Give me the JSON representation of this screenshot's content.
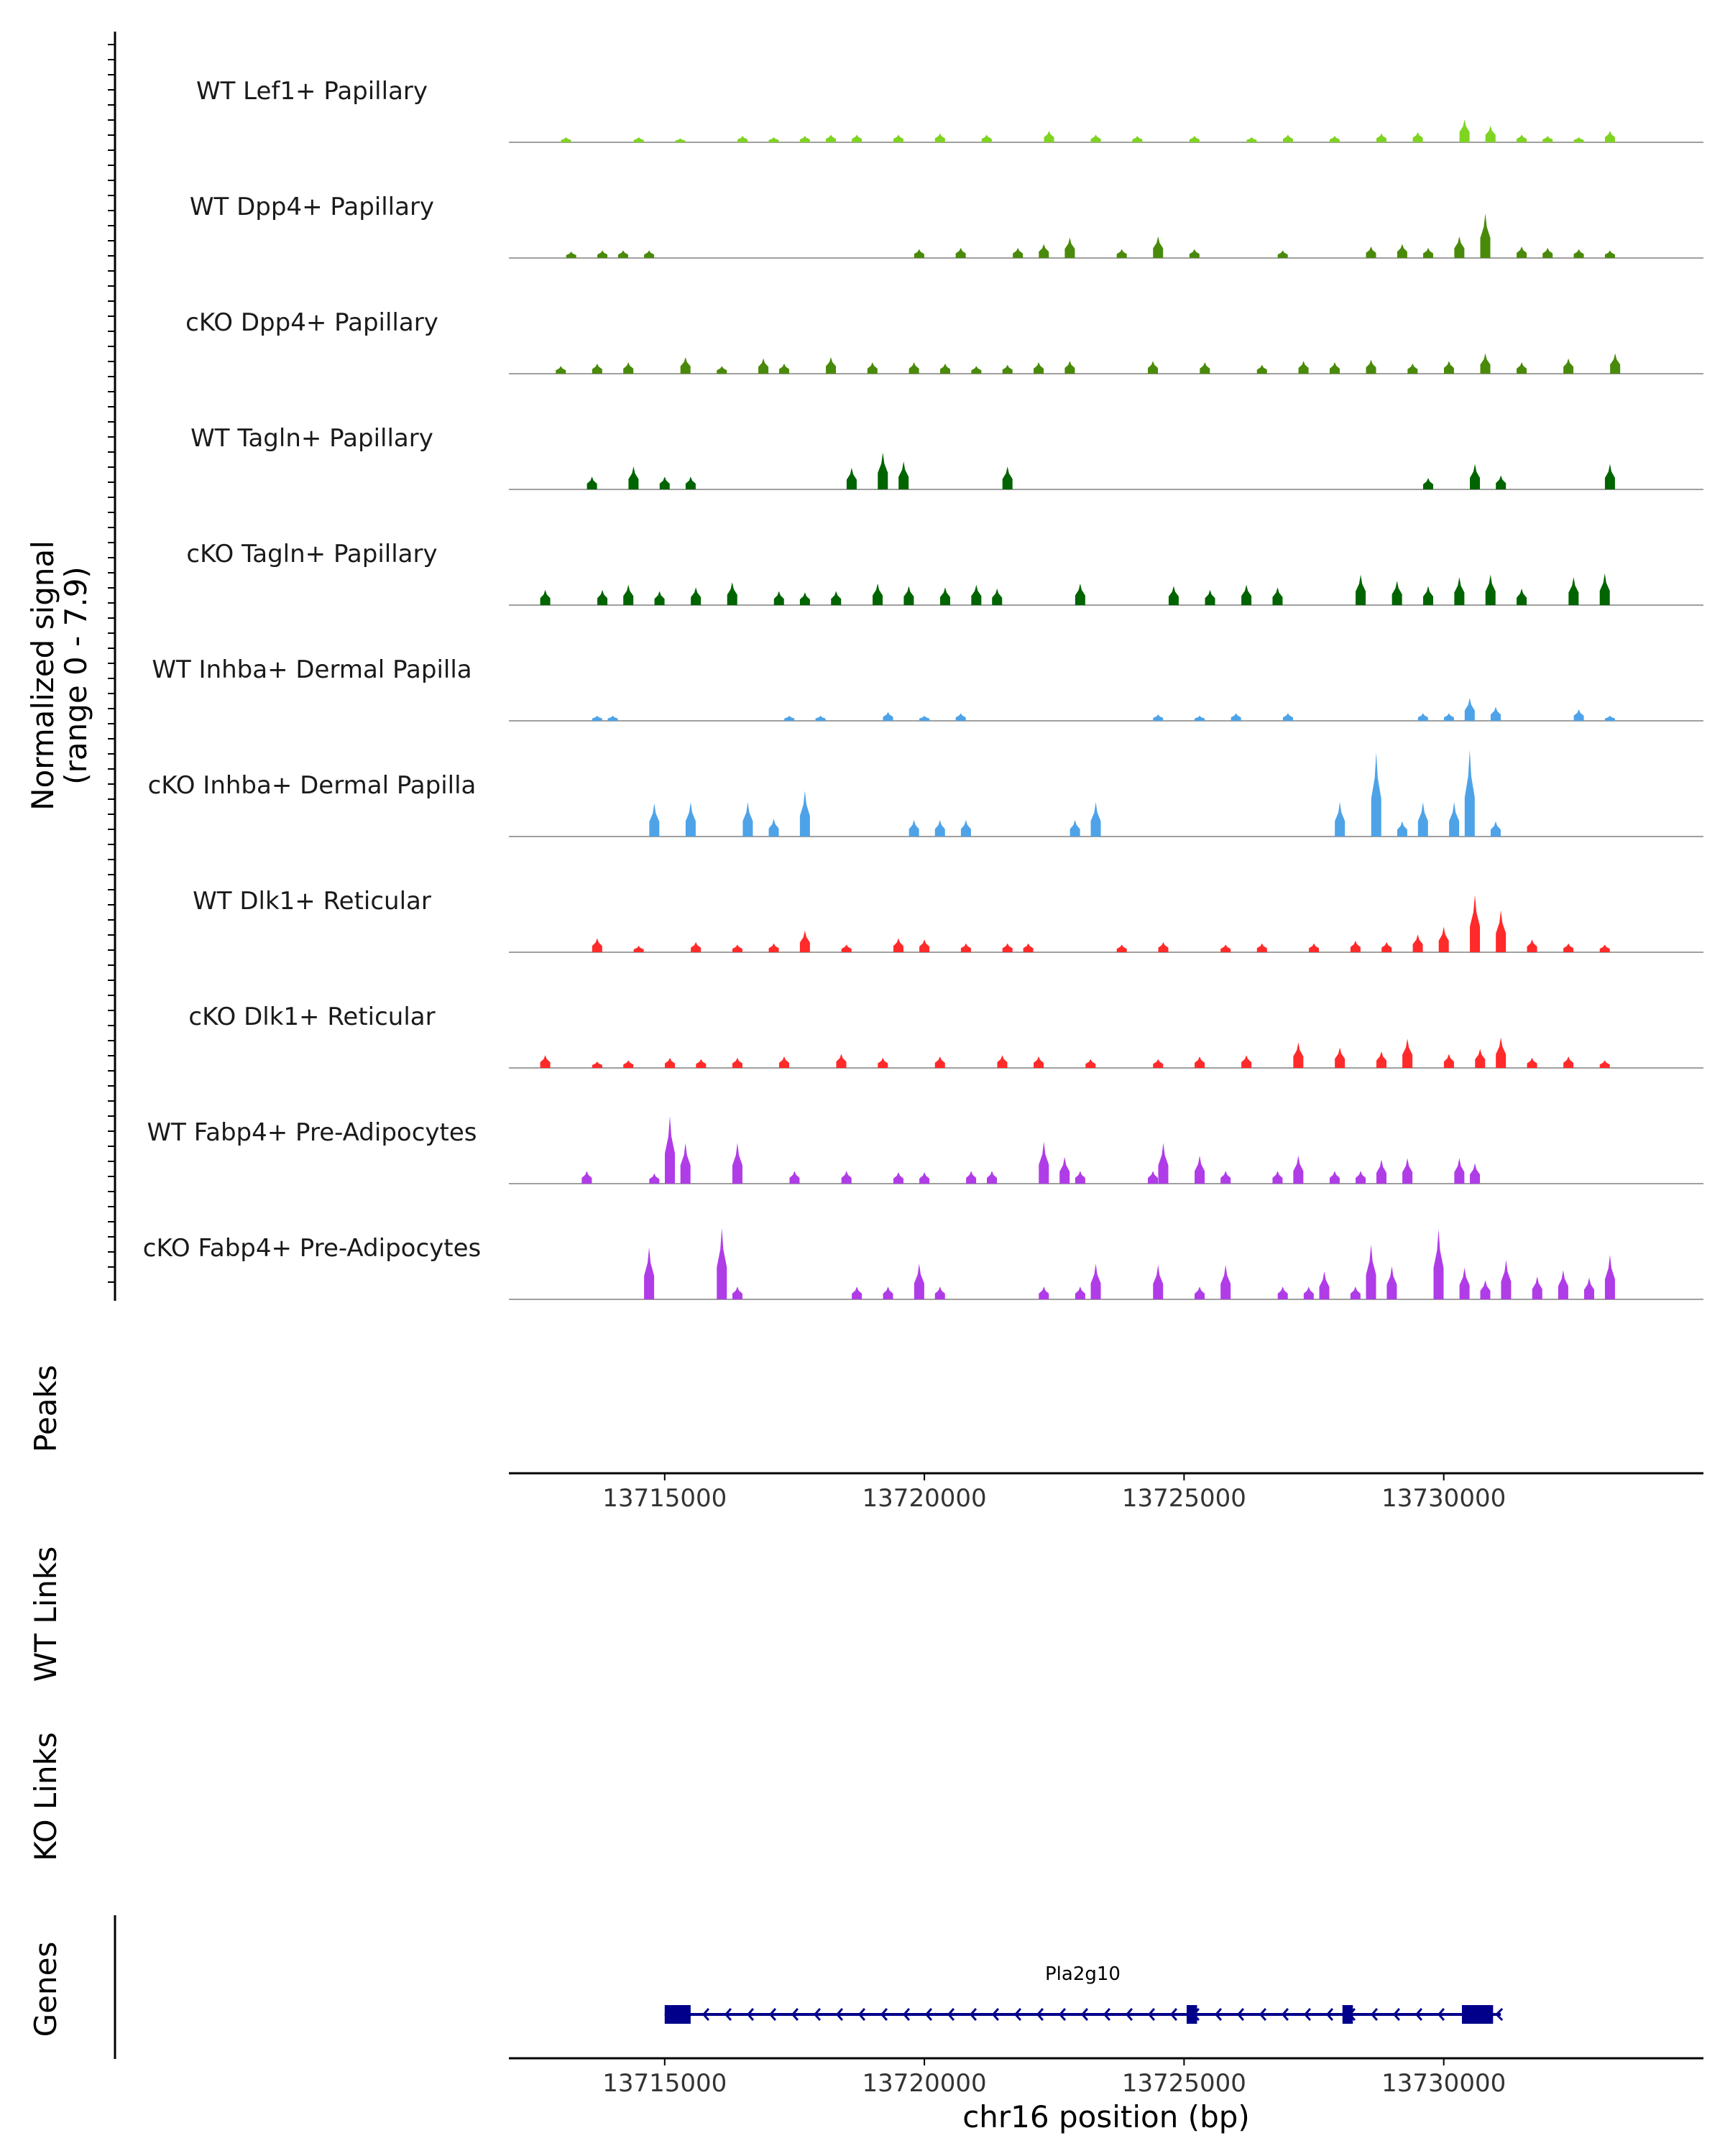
{
  "chart_data": {
    "type": "area",
    "title": "",
    "region": {
      "chromosome": "chr16",
      "start": 13712000,
      "end": 13735000
    },
    "ylabel_line1": "Normalized signal",
    "ylabel_line2": "(range 0 - 7.9)",
    "ylim": [
      0,
      7.9
    ],
    "xlabel": "chr16 position (bp)",
    "xticks": [
      13715000,
      13720000,
      13725000,
      13730000
    ],
    "xtick_labels": [
      "13715000",
      "13720000",
      "13725000",
      "13730000"
    ],
    "coverage_tracks": [
      {
        "name": "WT Lef1+ Papillary",
        "color": "#7FD321",
        "peaks": [
          [
            13713100,
            0.4
          ],
          [
            13714500,
            0.4
          ],
          [
            13715300,
            0.3
          ],
          [
            13716500,
            0.5
          ],
          [
            13717100,
            0.4
          ],
          [
            13717700,
            0.5
          ],
          [
            13718200,
            0.6
          ],
          [
            13718700,
            0.6
          ],
          [
            13719500,
            0.6
          ],
          [
            13720300,
            0.7
          ],
          [
            13721200,
            0.6
          ],
          [
            13722400,
            0.9
          ],
          [
            13723300,
            0.6
          ],
          [
            13724100,
            0.5
          ],
          [
            13725200,
            0.5
          ],
          [
            13726300,
            0.4
          ],
          [
            13727000,
            0.6
          ],
          [
            13727900,
            0.5
          ],
          [
            13728800,
            0.7
          ],
          [
            13729500,
            0.8
          ],
          [
            13730400,
            1.8
          ],
          [
            13730900,
            1.3
          ],
          [
            13731500,
            0.6
          ],
          [
            13732000,
            0.5
          ],
          [
            13732600,
            0.4
          ],
          [
            13733200,
            0.9
          ]
        ]
      },
      {
        "name": "WT Dpp4+ Papillary",
        "color": "#4A8A0A",
        "peaks": [
          [
            13713200,
            0.5
          ],
          [
            13713800,
            0.6
          ],
          [
            13714200,
            0.6
          ],
          [
            13714700,
            0.6
          ],
          [
            13719900,
            0.7
          ],
          [
            13720700,
            0.8
          ],
          [
            13721800,
            0.8
          ],
          [
            13722300,
            1.1
          ],
          [
            13722800,
            1.6
          ],
          [
            13723800,
            0.7
          ],
          [
            13724500,
            1.7
          ],
          [
            13725200,
            0.7
          ],
          [
            13726900,
            0.6
          ],
          [
            13728600,
            0.9
          ],
          [
            13729200,
            1.1
          ],
          [
            13729700,
            0.8
          ],
          [
            13730300,
            1.7
          ],
          [
            13730800,
            3.5
          ],
          [
            13731500,
            0.9
          ],
          [
            13732000,
            0.8
          ],
          [
            13732600,
            0.7
          ],
          [
            13733200,
            0.6
          ]
        ]
      },
      {
        "name": "cKO Dpp4+ Papillary",
        "color": "#4A8A0A",
        "peaks": [
          [
            13713000,
            0.6
          ],
          [
            13713700,
            0.8
          ],
          [
            13714300,
            0.9
          ],
          [
            13715400,
            1.3
          ],
          [
            13716100,
            0.6
          ],
          [
            13716900,
            1.2
          ],
          [
            13717300,
            0.8
          ],
          [
            13718200,
            1.3
          ],
          [
            13719000,
            0.9
          ],
          [
            13719800,
            0.9
          ],
          [
            13720400,
            0.8
          ],
          [
            13721000,
            0.6
          ],
          [
            13721600,
            0.7
          ],
          [
            13722200,
            0.9
          ],
          [
            13722800,
            1.0
          ],
          [
            13724400,
            1.0
          ],
          [
            13725400,
            0.9
          ],
          [
            13726500,
            0.7
          ],
          [
            13727300,
            1.0
          ],
          [
            13727900,
            0.9
          ],
          [
            13728600,
            1.1
          ],
          [
            13729400,
            0.8
          ],
          [
            13730100,
            1.0
          ],
          [
            13730800,
            1.6
          ],
          [
            13731500,
            0.9
          ],
          [
            13732400,
            1.2
          ],
          [
            13733300,
            1.6
          ]
        ]
      },
      {
        "name": "WT Tagln+ Papillary",
        "color": "#006400",
        "peaks": [
          [
            13713600,
            1.0
          ],
          [
            13714400,
            1.8
          ],
          [
            13715000,
            1.0
          ],
          [
            13715500,
            1.0
          ],
          [
            13718600,
            1.7
          ],
          [
            13719200,
            2.9
          ],
          [
            13719600,
            2.2
          ],
          [
            13721600,
            1.8
          ],
          [
            13729700,
            0.9
          ],
          [
            13730600,
            2.0
          ],
          [
            13731100,
            1.1
          ],
          [
            13733200,
            2.0
          ]
        ]
      },
      {
        "name": "cKO Tagln+ Papillary",
        "color": "#006400",
        "peaks": [
          [
            13712700,
            1.2
          ],
          [
            13713800,
            1.2
          ],
          [
            13714300,
            1.6
          ],
          [
            13714900,
            1.1
          ],
          [
            13715600,
            1.4
          ],
          [
            13716300,
            1.8
          ],
          [
            13717200,
            1.1
          ],
          [
            13717700,
            1.0
          ],
          [
            13718300,
            1.1
          ],
          [
            13719100,
            1.7
          ],
          [
            13719700,
            1.5
          ],
          [
            13720400,
            1.4
          ],
          [
            13721000,
            1.6
          ],
          [
            13721400,
            1.3
          ],
          [
            13723000,
            1.7
          ],
          [
            13724800,
            1.5
          ],
          [
            13725500,
            1.2
          ],
          [
            13726200,
            1.6
          ],
          [
            13726800,
            1.4
          ],
          [
            13728400,
            2.4
          ],
          [
            13729100,
            1.9
          ],
          [
            13729700,
            1.5
          ],
          [
            13730300,
            2.2
          ],
          [
            13730900,
            2.4
          ],
          [
            13731500,
            1.3
          ],
          [
            13732500,
            2.2
          ],
          [
            13733100,
            2.5
          ]
        ]
      },
      {
        "name": "WT Inhba+ Dermal Papilla",
        "color": "#4EA3E8",
        "peaks": [
          [
            13713700,
            0.4
          ],
          [
            13714000,
            0.4
          ],
          [
            13717400,
            0.4
          ],
          [
            13718000,
            0.4
          ],
          [
            13719300,
            0.7
          ],
          [
            13720000,
            0.4
          ],
          [
            13720700,
            0.6
          ],
          [
            13724500,
            0.5
          ],
          [
            13725300,
            0.4
          ],
          [
            13726000,
            0.6
          ],
          [
            13727000,
            0.6
          ],
          [
            13729600,
            0.6
          ],
          [
            13730100,
            0.6
          ],
          [
            13730500,
            1.8
          ],
          [
            13731000,
            1.1
          ],
          [
            13732600,
            0.9
          ],
          [
            13733200,
            0.4
          ]
        ]
      },
      {
        "name": "cKO Inhba+ Dermal Papilla",
        "color": "#4EA3E8",
        "peaks": [
          [
            13714800,
            2.6
          ],
          [
            13715500,
            2.7
          ],
          [
            13716600,
            2.7
          ],
          [
            13717100,
            1.4
          ],
          [
            13717700,
            3.6
          ],
          [
            13719800,
            1.3
          ],
          [
            13720300,
            1.3
          ],
          [
            13720800,
            1.3
          ],
          [
            13722900,
            1.3
          ],
          [
            13723300,
            2.7
          ],
          [
            13728000,
            2.7
          ],
          [
            13728700,
            6.6
          ],
          [
            13729200,
            1.2
          ],
          [
            13729600,
            2.7
          ],
          [
            13730200,
            2.7
          ],
          [
            13730500,
            6.8
          ],
          [
            13731000,
            1.2
          ]
        ]
      },
      {
        "name": "WT Dlk1+ Reticular",
        "color": "#FF2A2A",
        "peaks": [
          [
            13713700,
            1.1
          ],
          [
            13714500,
            0.5
          ],
          [
            13715600,
            0.8
          ],
          [
            13716400,
            0.6
          ],
          [
            13717100,
            0.7
          ],
          [
            13717700,
            1.7
          ],
          [
            13718500,
            0.6
          ],
          [
            13719500,
            1.1
          ],
          [
            13720000,
            1.0
          ],
          [
            13720800,
            0.7
          ],
          [
            13721600,
            0.7
          ],
          [
            13722000,
            0.7
          ],
          [
            13723800,
            0.6
          ],
          [
            13724600,
            0.8
          ],
          [
            13725800,
            0.6
          ],
          [
            13726500,
            0.7
          ],
          [
            13727500,
            0.7
          ],
          [
            13728300,
            0.9
          ],
          [
            13728900,
            0.8
          ],
          [
            13729500,
            1.4
          ],
          [
            13730000,
            2.0
          ],
          [
            13730600,
            4.5
          ],
          [
            13731100,
            3.3
          ],
          [
            13731700,
            1.0
          ],
          [
            13732400,
            0.7
          ],
          [
            13733100,
            0.6
          ]
        ]
      },
      {
        "name": "cKO Dlk1+ Reticular",
        "color": "#FF2A2A",
        "peaks": [
          [
            13712700,
            1.0
          ],
          [
            13713700,
            0.5
          ],
          [
            13714300,
            0.6
          ],
          [
            13715100,
            0.8
          ],
          [
            13715700,
            0.7
          ],
          [
            13716400,
            0.8
          ],
          [
            13717300,
            0.9
          ],
          [
            13718400,
            1.1
          ],
          [
            13719200,
            0.8
          ],
          [
            13720300,
            0.9
          ],
          [
            13721500,
            1.0
          ],
          [
            13722200,
            0.9
          ],
          [
            13723200,
            0.7
          ],
          [
            13724500,
            0.7
          ],
          [
            13725300,
            0.9
          ],
          [
            13726200,
            1.0
          ],
          [
            13727200,
            2.0
          ],
          [
            13728000,
            1.6
          ],
          [
            13728800,
            1.3
          ],
          [
            13729300,
            2.3
          ],
          [
            13730100,
            1.1
          ],
          [
            13730700,
            1.5
          ],
          [
            13731100,
            2.4
          ],
          [
            13731700,
            0.8
          ],
          [
            13732400,
            0.9
          ],
          [
            13733100,
            0.6
          ]
        ]
      },
      {
        "name": "WT Fabp4+ Pre-Adipocytes",
        "color": "#B03CE8",
        "peaks": [
          [
            13713500,
            1.0
          ],
          [
            13714800,
            0.8
          ],
          [
            13715100,
            5.3
          ],
          [
            13715400,
            3.2
          ],
          [
            13716400,
            3.2
          ],
          [
            13717500,
            1.0
          ],
          [
            13718500,
            1.0
          ],
          [
            13719500,
            0.9
          ],
          [
            13720000,
            0.9
          ],
          [
            13720900,
            1.0
          ],
          [
            13721300,
            1.0
          ],
          [
            13722300,
            3.3
          ],
          [
            13722700,
            2.1
          ],
          [
            13723000,
            1.0
          ],
          [
            13724400,
            1.0
          ],
          [
            13724600,
            3.2
          ],
          [
            13725300,
            2.2
          ],
          [
            13725800,
            1.0
          ],
          [
            13726800,
            1.0
          ],
          [
            13727200,
            2.2
          ],
          [
            13727900,
            1.0
          ],
          [
            13728400,
            1.0
          ],
          [
            13728800,
            1.9
          ],
          [
            13729300,
            2.0
          ],
          [
            13730300,
            2.0
          ],
          [
            13730600,
            1.6
          ]
        ]
      },
      {
        "name": "cKO Fabp4+ Pre-Adipocytes",
        "color": "#B03CE8",
        "peaks": [
          [
            13714700,
            4.1
          ],
          [
            13716100,
            5.6
          ],
          [
            13716400,
            1.0
          ],
          [
            13718700,
            1.0
          ],
          [
            13719300,
            1.0
          ],
          [
            13719900,
            2.8
          ],
          [
            13720300,
            1.0
          ],
          [
            13722300,
            1.0
          ],
          [
            13723000,
            1.0
          ],
          [
            13723300,
            2.8
          ],
          [
            13724500,
            2.7
          ],
          [
            13725300,
            1.0
          ],
          [
            13725800,
            2.7
          ],
          [
            13726900,
            1.0
          ],
          [
            13727400,
            1.0
          ],
          [
            13727700,
            2.2
          ],
          [
            13728300,
            1.0
          ],
          [
            13728600,
            4.3
          ],
          [
            13729000,
            2.6
          ],
          [
            13729900,
            5.5
          ],
          [
            13730400,
            2.5
          ],
          [
            13730800,
            1.5
          ],
          [
            13731200,
            3.1
          ],
          [
            13731800,
            1.8
          ],
          [
            13732300,
            2.3
          ],
          [
            13732800,
            1.7
          ],
          [
            13733200,
            3.5
          ]
        ]
      }
    ],
    "tracks": {
      "peaks": "Peaks",
      "wt_links": "WT Links",
      "ko_links": "KO Links",
      "genes": "Genes"
    },
    "gene": {
      "name": "Pla2g10",
      "strand": "-",
      "start": 13715000,
      "end": 13731100,
      "exons": [
        [
          13715000,
          13715500
        ],
        [
          13725050,
          13725250
        ],
        [
          13728050,
          13728250
        ],
        [
          13730350,
          13730950
        ]
      ]
    },
    "colors": {
      "axis": "#000000",
      "gene": "#00008B",
      "baseline": "#808080",
      "tick_label": "#333333"
    }
  }
}
